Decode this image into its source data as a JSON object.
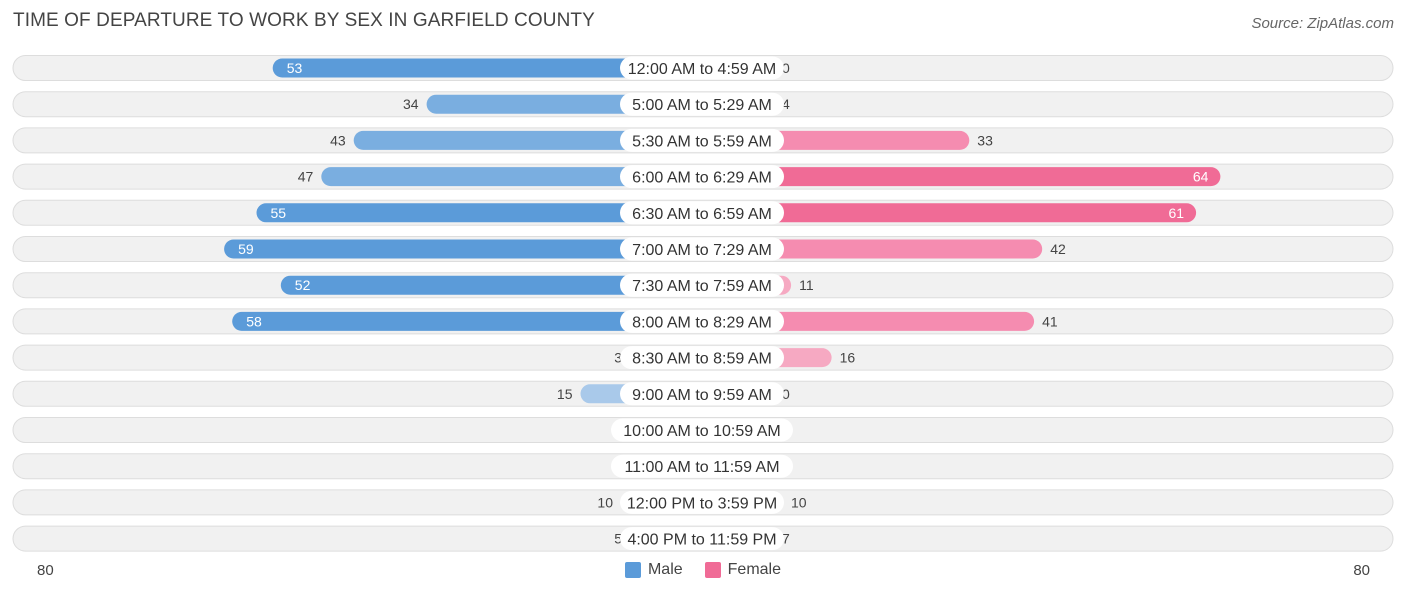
{
  "header": {
    "title": "TIME OF DEPARTURE TO WORK BY SEX IN GARFIELD COUNTY",
    "source": "Source: ZipAtlas.com"
  },
  "axis": {
    "left_label": "80",
    "right_label": "80"
  },
  "legend": {
    "male_label": "Male",
    "female_label": "Female"
  },
  "colors": {
    "male_strong": "#5b9bd9",
    "male_light": "#a9c9ea",
    "female_strong": "#f06b96",
    "female_light": "#f6a9c2",
    "row_bg": "#f1f1f1",
    "row_border": "#dddddd"
  },
  "chart_data": {
    "type": "bar",
    "orientation": "horizontal-diverging",
    "title": "TIME OF DEPARTURE TO WORK BY SEX IN GARFIELD COUNTY",
    "xlim": [
      -80,
      80
    ],
    "categories": [
      "12:00 AM to 4:59 AM",
      "5:00 AM to 5:29 AM",
      "5:30 AM to 5:59 AM",
      "6:00 AM to 6:29 AM",
      "6:30 AM to 6:59 AM",
      "7:00 AM to 7:29 AM",
      "7:30 AM to 7:59 AM",
      "8:00 AM to 8:29 AM",
      "8:30 AM to 8:59 AM",
      "9:00 AM to 9:59 AM",
      "10:00 AM to 10:59 AM",
      "11:00 AM to 11:59 AM",
      "12:00 PM to 3:59 PM",
      "4:00 PM to 11:59 PM"
    ],
    "series": [
      {
        "name": "Male",
        "values": [
          53,
          34,
          43,
          47,
          55,
          59,
          52,
          58,
          3,
          15,
          0,
          0,
          10,
          5
        ]
      },
      {
        "name": "Female",
        "values": [
          0,
          4,
          33,
          64,
          61,
          42,
          11,
          41,
          16,
          0,
          0,
          0,
          10,
          7
        ]
      }
    ],
    "legend_position": "bottom-center"
  }
}
